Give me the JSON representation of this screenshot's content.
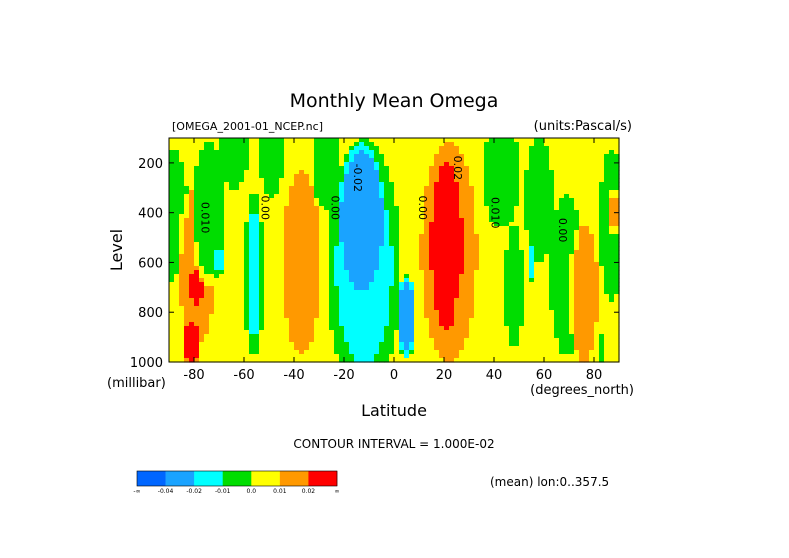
{
  "chart_data": {
    "type": "heatmap",
    "title": "Monthly Mean Omega",
    "file_label": "[OMEGA_2001-01_NCEP.nc]",
    "units_label": "(units:Pascal/s)",
    "xlabel": "Latitude",
    "x_units": "(degrees_north)",
    "ylabel": "Level",
    "y_units": "(millibar)",
    "xlim": [
      -90,
      90
    ],
    "ylim": [
      1000,
      100
    ],
    "y_inverted": true,
    "x_ticks": [
      -80,
      -60,
      -40,
      -20,
      0,
      20,
      40,
      60,
      80
    ],
    "x_tick_labels": [
      "-80",
      "-60",
      "-40",
      "-20",
      "0",
      "20",
      "40",
      "60",
      "80"
    ],
    "y_ticks": [
      200,
      400,
      600,
      800,
      1000
    ],
    "y_tick_labels": [
      "200",
      "400",
      "600",
      "800",
      "1000"
    ],
    "contour_interval_text": "CONTOUR INTERVAL = 1.000E-02",
    "mean_text": "(mean) lon:0..357.5",
    "levels": [
      -0.04,
      -0.02,
      -0.01,
      0.0,
      0.01,
      0.02
    ],
    "colorbar": {
      "colors": [
        "#0066ff",
        "#1aa3ff",
        "#00ffff",
        "#00dd00",
        "#ffff00",
        "#ff9900",
        "#ff0000"
      ],
      "labels": [
        "-∞",
        "-0.04",
        "-0.02",
        "-0.01",
        "0.0",
        "0.01",
        "0.02",
        "∞"
      ]
    },
    "background_value": 0.005,
    "features": [
      {
        "lat": -88,
        "lat_width": 6,
        "p_center": 420,
        "p_half": 280,
        "value": -0.007
      },
      {
        "lat": -85,
        "lat_width": 5,
        "p_center": 820,
        "p_half": 200,
        "value": 0.003
      },
      {
        "lat": -79,
        "lat_width": 8,
        "p_center": 620,
        "p_half": 340,
        "value": 0.015
      },
      {
        "lat": -79,
        "lat_width": 3,
        "p_center": 700,
        "p_half": 80,
        "value": 0.025
      },
      {
        "lat": -81,
        "lat_width": 4,
        "p_center": 930,
        "p_half": 100,
        "value": 0.025
      },
      {
        "lat": -74,
        "lat_width": 7,
        "p_center": 400,
        "p_half": 300,
        "value": -0.007
      },
      {
        "lat": -70,
        "lat_width": 2,
        "p_center": 590,
        "p_half": 60,
        "value": -0.015
      },
      {
        "lat": -64,
        "lat_width": 6,
        "p_center": 160,
        "p_half": 150,
        "value": -0.007
      },
      {
        "lat": -56,
        "lat_width": 4,
        "p_center": 650,
        "p_half": 340,
        "value": -0.015
      },
      {
        "lat": -49,
        "lat_width": 5,
        "p_center": 180,
        "p_half": 160,
        "value": -0.007
      },
      {
        "lat": -37,
        "lat_width": 8,
        "p_center": 600,
        "p_half": 400,
        "value": 0.015
      },
      {
        "lat": -27,
        "lat_width": 6,
        "p_center": 200,
        "p_half": 200,
        "value": -0.007
      },
      {
        "lat": -12,
        "lat_width": 15,
        "p_center": 620,
        "p_half": 520,
        "value": -0.015
      },
      {
        "lat": -13,
        "lat_width": 9,
        "p_center": 420,
        "p_half": 300,
        "value": -0.03
      },
      {
        "lat": 5,
        "lat_width": 4,
        "p_center": 820,
        "p_half": 170,
        "value": -0.03
      },
      {
        "lat": 22,
        "lat_width": 12,
        "p_center": 560,
        "p_half": 480,
        "value": 0.015
      },
      {
        "lat": 21,
        "lat_width": 7,
        "p_center": 530,
        "p_half": 380,
        "value": 0.025
      },
      {
        "lat": 25,
        "lat_width": 2,
        "p_center": 820,
        "p_half": 70,
        "value": 0.015
      },
      {
        "lat": 29,
        "lat_width": 2,
        "p_center": 730,
        "p_half": 60,
        "value": 0.015
      },
      {
        "lat": 43,
        "lat_width": 8,
        "p_center": 250,
        "p_half": 220,
        "value": -0.007
      },
      {
        "lat": 48,
        "lat_width": 4,
        "p_center": 700,
        "p_half": 260,
        "value": -0.007
      },
      {
        "lat": 58,
        "lat_width": 6,
        "p_center": 350,
        "p_half": 270,
        "value": -0.007
      },
      {
        "lat": 55,
        "lat_width": 2,
        "p_center": 600,
        "p_half": 80,
        "value": -0.015
      },
      {
        "lat": 69,
        "lat_width": 7,
        "p_center": 650,
        "p_half": 340,
        "value": -0.007
      },
      {
        "lat": 76,
        "lat_width": 6,
        "p_center": 720,
        "p_half": 300,
        "value": 0.015
      },
      {
        "lat": 87,
        "lat_width": 5,
        "p_center": 450,
        "p_half": 320,
        "value": -0.007
      },
      {
        "lat": 88,
        "lat_width": 2,
        "p_center": 400,
        "p_half": 100,
        "value": 0.015
      },
      {
        "lat": 83,
        "lat_width": 2,
        "p_center": 950,
        "p_half": 60,
        "value": -0.007
      }
    ],
    "contour_labels": [
      {
        "text": "0.010",
        "lat": -77,
        "p": 420
      },
      {
        "text": "0.00",
        "lat": -53,
        "p": 380
      },
      {
        "text": "0.00",
        "lat": -25,
        "p": 380
      },
      {
        "text": "-0.02",
        "lat": -16,
        "p": 260
      },
      {
        "text": "0.00",
        "lat": 10,
        "p": 380
      },
      {
        "text": "0.02",
        "lat": 24,
        "p": 220
      },
      {
        "text": "0.010",
        "lat": 39,
        "p": 400
      },
      {
        "text": "0.00",
        "lat": 66,
        "p": 470
      }
    ]
  }
}
